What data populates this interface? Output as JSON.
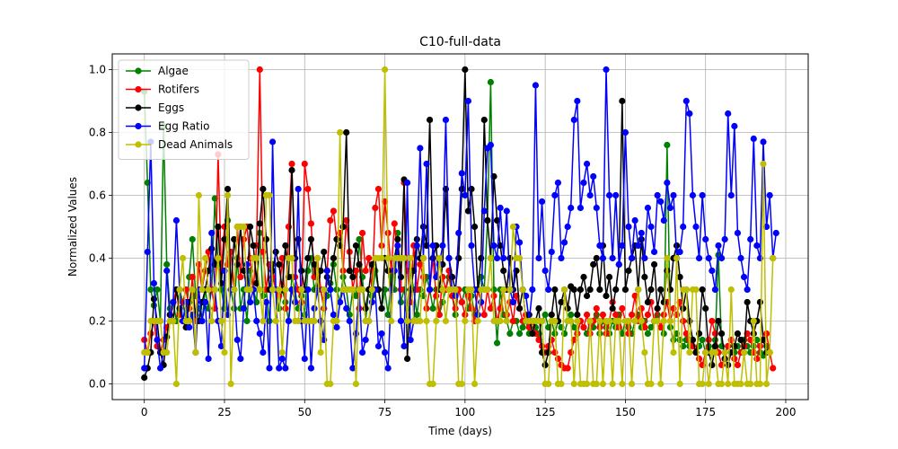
{
  "chart_data": {
    "type": "line",
    "title": "C10-full-data",
    "xlabel": "Time (days)",
    "ylabel": "Normalized Values",
    "xlim": [
      -10,
      207
    ],
    "ylim": [
      -0.05,
      1.05
    ],
    "xticks": [
      0,
      25,
      50,
      75,
      100,
      125,
      150,
      175,
      200
    ],
    "yticks": [
      0.0,
      0.2,
      0.4,
      0.6,
      0.8,
      1.0
    ],
    "xtick_labels": [
      "0",
      "25",
      "50",
      "75",
      "100",
      "125",
      "150",
      "175",
      "200"
    ],
    "ytick_labels": [
      "0.0",
      "0.2",
      "0.4",
      "0.6",
      "0.8",
      "1.0"
    ],
    "grid": true,
    "legend": "top-left",
    "series": [
      {
        "name": "Algae",
        "color": "#008000",
        "values": [
          0.93,
          0.64,
          0.3,
          0.25,
          0.3,
          0.2,
          0.82,
          0.38,
          0.24,
          0.26,
          0.2,
          0.3,
          0.26,
          0.2,
          0.34,
          0.46,
          0.28,
          0.24,
          0.2,
          0.3,
          0.24,
          0.3,
          0.59,
          0.38,
          0.3,
          0.24,
          0.52,
          0.3,
          0.24,
          0.4,
          0.24,
          0.3,
          0.2,
          0.36,
          0.3,
          0.26,
          0.48,
          0.28,
          0.3,
          0.2,
          0.38,
          0.3,
          0.24,
          0.3,
          0.26,
          0.2,
          0.34,
          0.3,
          0.24,
          0.28,
          0.22,
          0.36,
          0.4,
          0.3,
          0.34,
          0.3,
          0.24,
          0.28,
          0.32,
          0.38,
          0.3,
          0.26,
          0.34,
          0.3,
          0.22,
          0.3,
          0.28,
          0.46,
          0.34,
          0.2,
          0.3,
          0.28,
          0.36,
          0.3,
          0.24,
          0.3,
          0.22,
          0.34,
          0.3,
          0.48,
          0.26,
          0.3,
          0.24,
          0.36,
          0.3,
          0.22,
          0.3,
          0.28,
          0.34,
          0.3,
          0.24,
          0.3,
          0.22,
          0.26,
          0.3,
          0.34,
          0.28,
          0.22,
          0.3,
          0.26,
          0.3,
          0.24,
          0.28,
          0.22,
          0.3,
          0.34,
          0.3,
          0.52,
          0.96,
          0.3,
          0.13,
          0.3,
          0.22,
          0.2,
          0.16,
          0.2,
          0.2,
          0.16,
          0.18,
          0.2,
          0.16,
          0.2,
          0.18,
          0.16,
          0.2,
          0.22,
          0.18,
          0.2,
          0.16,
          0.2,
          0.18,
          0.16,
          0.2,
          0.22,
          0.18,
          0.16,
          0.2,
          0.18,
          0.16,
          0.2,
          0.18,
          0.22,
          0.16,
          0.2,
          0.18,
          0.16,
          0.2,
          0.18,
          0.22,
          0.16,
          0.2,
          0.18,
          0.16,
          0.2,
          0.22,
          0.18,
          0.2,
          0.16,
          0.18,
          0.2,
          0.22,
          0.18,
          0.16,
          0.76,
          0.18,
          0.14,
          0.16,
          0.14,
          0.12,
          0.14,
          0.12,
          0.14,
          0.1,
          0.12,
          0.14,
          0.1,
          0.12,
          0.1,
          0.14,
          0.41,
          0.12,
          0.1,
          0.12,
          0.14,
          0.1,
          0.12,
          0.1,
          0.14,
          0.12,
          0.1,
          0.12,
          0.14,
          0.1,
          0.09,
          0.12,
          0.1
        ]
      },
      {
        "name": "Rotifers",
        "color": "#ff0000",
        "values": [
          0.14,
          0.1,
          0.16,
          0.2,
          0.12,
          0.1,
          0.14,
          0.18,
          0.22,
          0.26,
          0.3,
          0.22,
          0.26,
          0.3,
          0.24,
          0.34,
          0.2,
          0.38,
          0.3,
          0.36,
          0.42,
          0.3,
          0.24,
          0.73,
          0.36,
          0.5,
          0.38,
          0.42,
          0.3,
          0.5,
          0.34,
          0.46,
          0.5,
          0.4,
          0.3,
          0.44,
          1.0,
          0.42,
          0.3,
          0.38,
          0.34,
          0.3,
          0.28,
          0.4,
          0.24,
          0.5,
          0.7,
          0.34,
          0.3,
          0.26,
          0.7,
          0.62,
          0.51,
          0.34,
          0.4,
          0.3,
          0.24,
          0.36,
          0.52,
          0.55,
          0.46,
          0.48,
          0.36,
          0.52,
          0.42,
          0.3,
          0.36,
          0.24,
          0.48,
          0.36,
          0.4,
          0.3,
          0.56,
          0.62,
          0.44,
          0.58,
          0.48,
          0.36,
          0.51,
          0.4,
          0.3,
          0.64,
          0.36,
          0.26,
          0.44,
          0.3,
          0.38,
          0.34,
          0.24,
          0.3,
          0.4,
          0.28,
          0.22,
          0.34,
          0.3,
          0.36,
          0.28,
          0.24,
          0.3,
          0.26,
          0.22,
          0.28,
          0.24,
          0.2,
          0.3,
          0.26,
          0.22,
          0.3,
          0.24,
          0.28,
          0.2,
          0.24,
          0.3,
          0.22,
          0.26,
          0.2,
          0.28,
          0.24,
          0.2,
          0.22,
          0.18,
          0.2,
          0.16,
          0.14,
          0.12,
          0.1,
          0.12,
          0.14,
          0.1,
          0.08,
          0.06,
          0.05,
          0.05,
          0.1,
          0.14,
          0.16,
          0.2,
          0.18,
          0.22,
          0.16,
          0.2,
          0.24,
          0.18,
          0.22,
          0.16,
          0.2,
          0.26,
          0.22,
          0.18,
          0.24,
          0.2,
          0.16,
          0.22,
          0.28,
          0.2,
          0.24,
          0.18,
          0.22,
          0.26,
          0.2,
          0.24,
          0.18,
          0.22,
          0.26,
          0.2,
          0.24,
          0.22,
          0.26,
          0.2,
          0.16,
          0.14,
          0.12,
          0.1,
          0.08,
          0.06,
          0.1,
          0.14,
          0.2,
          0.16,
          0.1,
          0.06,
          0.08,
          0.12,
          0.14,
          0.08,
          0.06,
          0.1,
          0.12,
          0.16,
          0.14,
          0.1,
          0.08,
          0.12,
          0.14,
          0.16,
          0.1,
          0.05
        ]
      },
      {
        "name": "Eggs",
        "color": "#000000",
        "values": [
          0.02,
          0.05,
          0.1,
          0.27,
          0.2,
          0.1,
          0.06,
          0.15,
          0.22,
          0.2,
          0.3,
          0.24,
          0.2,
          0.18,
          0.26,
          0.3,
          0.22,
          0.2,
          0.26,
          0.3,
          0.36,
          0.43,
          0.38,
          0.5,
          0.32,
          0.46,
          0.62,
          0.3,
          0.46,
          0.38,
          0.5,
          0.36,
          0.3,
          0.5,
          0.44,
          0.32,
          0.51,
          0.62,
          0.46,
          0.3,
          0.36,
          0.42,
          0.38,
          0.3,
          0.44,
          0.34,
          0.68,
          0.4,
          0.46,
          0.36,
          0.3,
          0.4,
          0.46,
          0.38,
          0.3,
          0.36,
          0.42,
          0.34,
          0.3,
          0.4,
          0.46,
          0.44,
          0.5,
          0.8,
          0.36,
          0.34,
          0.44,
          0.38,
          0.3,
          0.24,
          0.3,
          0.38,
          0.4,
          0.3,
          0.24,
          0.4,
          0.36,
          0.3,
          0.4,
          0.46,
          0.34,
          0.65,
          0.08,
          0.3,
          0.36,
          0.46,
          0.4,
          0.5,
          0.44,
          0.84,
          0.4,
          0.44,
          0.3,
          0.38,
          0.62,
          0.4,
          0.34,
          0.3,
          0.4,
          0.62,
          1.0,
          0.55,
          0.62,
          0.5,
          0.3,
          0.4,
          0.84,
          0.52,
          0.4,
          0.66,
          0.52,
          0.44,
          0.36,
          0.3,
          0.4,
          0.3,
          0.36,
          0.24,
          0.3,
          0.2,
          0.22,
          0.16,
          0.2,
          0.24,
          0.1,
          0.06,
          0.1,
          0.22,
          0.3,
          0.2,
          0.26,
          0.3,
          0.24,
          0.31,
          0.3,
          0.22,
          0.3,
          0.34,
          0.28,
          0.3,
          0.38,
          0.4,
          0.3,
          0.44,
          0.28,
          0.34,
          0.24,
          0.3,
          0.38,
          0.9,
          0.3,
          0.36,
          0.4,
          0.44,
          0.3,
          0.46,
          0.34,
          0.26,
          0.3,
          0.38,
          0.24,
          0.3,
          0.26,
          0.36,
          0.3,
          0.4,
          0.44,
          0.34,
          0.24,
          0.3,
          0.2,
          0.14,
          0.1,
          0.16,
          0.3,
          0.24,
          0.1,
          0.06,
          0.12,
          0.2,
          0.16,
          0.08,
          0.06,
          0.1,
          0.12,
          0.16,
          0.14,
          0.1,
          0.26,
          0.2,
          0.16,
          0.2,
          0.26,
          0.14,
          0.1
        ]
      },
      {
        "name": "Egg Ratio",
        "color": "#0000ff",
        "values": [
          0.05,
          0.42,
          0.77,
          0.32,
          0.14,
          0.05,
          0.1,
          0.36,
          0.2,
          0.26,
          0.52,
          0.3,
          0.2,
          0.26,
          0.18,
          0.22,
          0.1,
          0.3,
          0.2,
          0.26,
          0.08,
          0.48,
          0.3,
          0.2,
          0.12,
          0.36,
          0.22,
          0.3,
          0.3,
          0.14,
          0.08,
          0.24,
          0.38,
          0.26,
          0.3,
          0.2,
          0.16,
          0.1,
          0.26,
          0.05,
          0.77,
          0.3,
          0.05,
          0.08,
          0.05,
          0.2,
          0.3,
          0.26,
          0.62,
          0.2,
          0.08,
          0.3,
          0.05,
          0.24,
          0.3,
          0.2,
          0.14,
          0.36,
          0.3,
          0.22,
          0.18,
          0.26,
          0.3,
          0.24,
          0.2,
          0.05,
          0.16,
          0.3,
          0.1,
          0.14,
          0.2,
          0.26,
          0.3,
          0.12,
          0.16,
          0.1,
          0.05,
          0.3,
          0.36,
          0.44,
          0.2,
          0.12,
          0.64,
          0.14,
          0.2,
          0.44,
          0.75,
          0.4,
          0.7,
          0.3,
          0.44,
          0.34,
          0.38,
          0.44,
          0.84,
          0.4,
          0.3,
          0.28,
          0.48,
          0.67,
          0.6,
          0.9,
          0.44,
          0.3,
          0.22,
          0.26,
          0.55,
          0.75,
          0.76,
          0.44,
          0.4,
          0.56,
          0.4,
          0.55,
          0.3,
          0.26,
          0.5,
          0.45,
          0.3,
          0.28,
          0.2,
          0.3,
          0.95,
          0.4,
          0.58,
          0.36,
          0.3,
          0.42,
          0.6,
          0.64,
          0.4,
          0.45,
          0.5,
          0.56,
          0.84,
          0.9,
          0.56,
          0.64,
          0.7,
          0.6,
          0.66,
          0.56,
          0.44,
          0.4,
          1.0,
          0.6,
          0.4,
          0.6,
          0.38,
          0.44,
          0.8,
          0.5,
          0.4,
          0.52,
          0.44,
          0.48,
          0.4,
          0.56,
          0.5,
          0.42,
          0.6,
          0.58,
          0.52,
          0.64,
          0.56,
          0.6,
          0.4,
          0.42,
          0.5,
          0.9,
          0.86,
          0.6,
          0.5,
          0.4,
          0.6,
          0.46,
          0.4,
          0.36,
          0.3,
          0.44,
          0.4,
          0.46,
          0.86,
          0.6,
          0.82,
          0.48,
          0.4,
          0.34,
          0.3,
          0.46,
          0.78,
          0.44,
          0.4,
          0.77,
          0.5,
          0.6,
          0.4,
          0.48
        ]
      },
      {
        "name": "Dead Animals",
        "color": "#bfbf00",
        "values": [
          0.1,
          0.1,
          0.2,
          0.2,
          0.2,
          0.2,
          0.1,
          0.1,
          0.2,
          0.2,
          0.0,
          0.3,
          0.4,
          0.2,
          0.2,
          0.3,
          0.1,
          0.6,
          0.3,
          0.4,
          0.3,
          0.2,
          0.3,
          0.4,
          0.2,
          0.1,
          0.6,
          0.0,
          0.3,
          0.5,
          0.5,
          0.5,
          0.3,
          0.3,
          0.4,
          0.4,
          0.3,
          0.2,
          0.6,
          0.6,
          0.3,
          0.2,
          0.3,
          0.1,
          0.3,
          0.4,
          0.4,
          0.2,
          0.2,
          0.3,
          0.2,
          0.2,
          0.2,
          0.2,
          0.4,
          0.1,
          0.3,
          0.0,
          0.0,
          0.2,
          0.2,
          0.8,
          0.3,
          0.3,
          0.3,
          0.3,
          0.0,
          0.3,
          0.3,
          0.2,
          0.2,
          0.3,
          0.4,
          0.4,
          0.4,
          1.0,
          0.4,
          0.2,
          0.4,
          0.4,
          0.4,
          0.4,
          0.2,
          0.4,
          0.2,
          0.2,
          0.2,
          0.4,
          0.2,
          0.0,
          0.0,
          0.2,
          0.4,
          0.3,
          0.2,
          0.3,
          0.3,
          0.3,
          0.0,
          0.0,
          0.2,
          0.3,
          0.3,
          0.0,
          0.2,
          0.3,
          0.3,
          0.3,
          0.4,
          0.2,
          0.2,
          0.2,
          0.3,
          0.2,
          0.3,
          0.5,
          0.4,
          0.4,
          0.3,
          0.2,
          0.2,
          0.2,
          0.2,
          0.2,
          0.2,
          0.0,
          0.0,
          0.2,
          0.2,
          0.0,
          0.0,
          0.3,
          0.2,
          0.2,
          0.0,
          0.2,
          0.0,
          0.0,
          0.0,
          0.2,
          0.0,
          0.0,
          0.2,
          0.0,
          0.2,
          0.2,
          0.0,
          0.2,
          0.2,
          0.0,
          0.2,
          0.2,
          0.0,
          0.2,
          0.3,
          0.2,
          0.1,
          0.0,
          0.0,
          0.2,
          0.2,
          0.0,
          0.2,
          0.4,
          0.2,
          0.1,
          0.4,
          0.0,
          0.3,
          0.3,
          0.1,
          0.3,
          0.3,
          0.0,
          0.0,
          0.1,
          0.0,
          0.1,
          0.1,
          0.0,
          0.0,
          0.1,
          0.0,
          0.3,
          0.0,
          0.0,
          0.0,
          0.1,
          0.0,
          0.0,
          0.2,
          0.0,
          0.0,
          0.7,
          0.0,
          0.1,
          0.4
        ]
      }
    ]
  }
}
